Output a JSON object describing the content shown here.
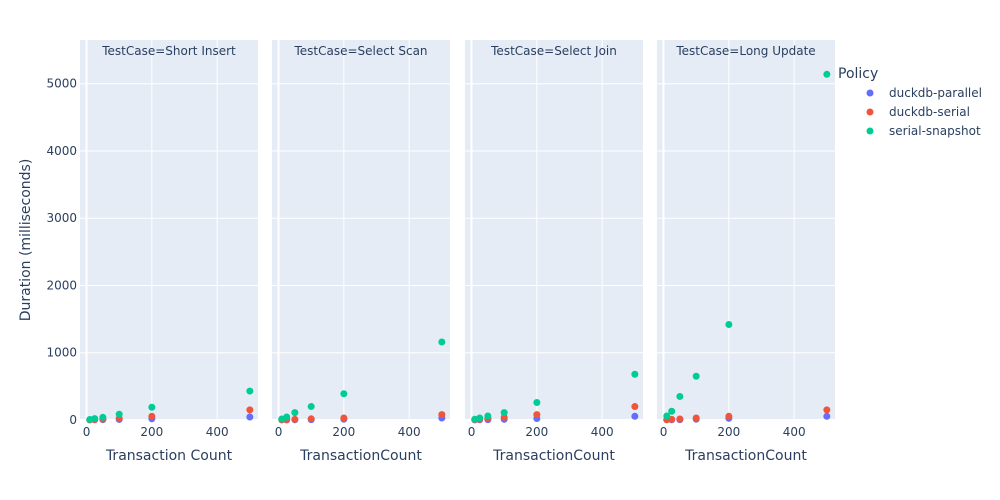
{
  "chart_data": {
    "type": "scatter",
    "ylabel": "Duration (milliseconds)",
    "ylim": [
      0,
      5650
    ],
    "y_ticks": [
      0,
      1000,
      2000,
      3000,
      4000,
      5000
    ],
    "xlim": [
      -20,
      525
    ],
    "x_ticks": [
      0,
      200,
      400
    ],
    "grid": true,
    "legend": {
      "title": "Policy",
      "placement": "right",
      "entries": [
        {
          "name": "duckdb-parallel",
          "color": "#636efa"
        },
        {
          "name": "duckdb-serial",
          "color": "#EF553B"
        },
        {
          "name": "serial-snapshot",
          "color": "#00cc96"
        }
      ]
    },
    "panels": [
      {
        "title": "TestCase=Short Insert",
        "xlabel": "Transaction Count",
        "series": [
          {
            "name": "duckdb-parallel",
            "x": [
              10,
              25,
              50,
              100,
              200,
              500
            ],
            "y": [
              2,
              3,
              5,
              8,
              18,
              45
            ]
          },
          {
            "name": "duckdb-serial",
            "x": [
              10,
              25,
              50,
              100,
              200,
              500
            ],
            "y": [
              3,
              6,
              12,
              25,
              55,
              150
            ]
          },
          {
            "name": "serial-snapshot",
            "x": [
              10,
              25,
              50,
              100,
              200,
              500
            ],
            "y": [
              8,
              20,
              40,
              85,
              190,
              430
            ]
          }
        ]
      },
      {
        "title": "TestCase=Select Scan",
        "xlabel": "TransactionCount",
        "series": [
          {
            "name": "duckdb-parallel",
            "x": [
              10,
              25,
              50,
              100,
              200,
              500
            ],
            "y": [
              2,
              2,
              4,
              6,
              12,
              30
            ]
          },
          {
            "name": "duckdb-serial",
            "x": [
              10,
              25,
              50,
              100,
              200,
              500
            ],
            "y": [
              4,
              6,
              10,
              18,
              30,
              80
            ]
          },
          {
            "name": "serial-snapshot",
            "x": [
              10,
              25,
              50,
              100,
              200,
              500
            ],
            "y": [
              15,
              45,
              110,
              200,
              390,
              1160
            ]
          }
        ]
      },
      {
        "title": "TestCase=Select Join",
        "xlabel": "TransactionCount",
        "series": [
          {
            "name": "duckdb-parallel",
            "x": [
              10,
              25,
              50,
              100,
              200,
              500
            ],
            "y": [
              2,
              3,
              6,
              10,
              22,
              55
            ]
          },
          {
            "name": "duckdb-serial",
            "x": [
              10,
              25,
              50,
              100,
              200,
              500
            ],
            "y": [
              5,
              10,
              20,
              40,
              80,
              200
            ]
          },
          {
            "name": "serial-snapshot",
            "x": [
              10,
              25,
              50,
              100,
              200,
              500
            ],
            "y": [
              12,
              30,
              60,
              110,
              260,
              680
            ]
          }
        ]
      },
      {
        "title": "TestCase=Long Update",
        "xlabel": "TransactionCount",
        "series": [
          {
            "name": "duckdb-parallel",
            "x": [
              10,
              25,
              50,
              100,
              200,
              500
            ],
            "y": [
              3,
              4,
              6,
              12,
              25,
              55
            ]
          },
          {
            "name": "duckdb-serial",
            "x": [
              10,
              25,
              50,
              100,
              200,
              500
            ],
            "y": [
              5,
              10,
              15,
              30,
              55,
              150
            ]
          },
          {
            "name": "serial-snapshot",
            "x": [
              10,
              25,
              50,
              100,
              200,
              500
            ],
            "y": [
              60,
              130,
              350,
              650,
              1420,
              5140
            ]
          }
        ]
      }
    ]
  }
}
